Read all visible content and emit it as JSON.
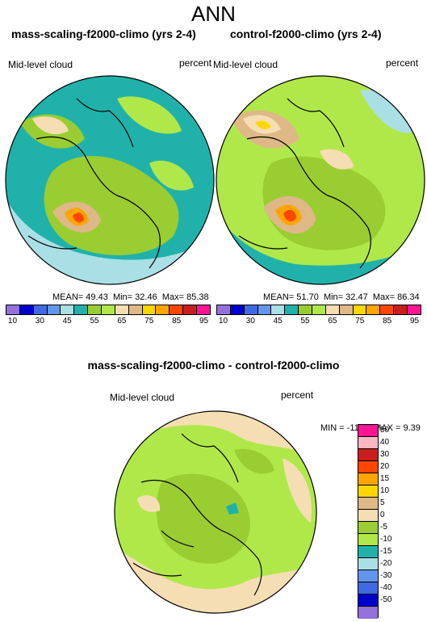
{
  "title": "ANN",
  "panels": [
    {
      "title": "mass-scaling-f2000-climo (yrs 2-4)",
      "variable": "Mid-level cloud",
      "units": "percent",
      "mean_label": "MEAN=",
      "mean": "49.43",
      "min_label": "Min=",
      "min": "32.46",
      "max_label": "Max=",
      "max": "85.38"
    },
    {
      "title": "control-f2000-climo (yrs 2-4)",
      "variable": "Mid-level cloud",
      "units": "percent",
      "mean_label": "MEAN=",
      "mean": "51.70",
      "min_label": "Min=",
      "min": "32.47",
      "max_label": "Max=",
      "max": "86.34"
    }
  ],
  "colorbar_top": {
    "colors": [
      "#9370db",
      "#0000cd",
      "#4169e1",
      "#6495ed",
      "#aadfe6",
      "#20b2aa",
      "#9acd32",
      "#b0e84a",
      "#f5deb3",
      "#deb887",
      "#ffd700",
      "#ffa500",
      "#ff4500",
      "#c81e1e",
      "#ff1493"
    ],
    "labels": [
      "10",
      "30",
      "45",
      "55",
      "65",
      "75",
      "85",
      "95"
    ]
  },
  "difference": {
    "title": "mass-scaling-f2000-climo - control-f2000-climo",
    "variable": "Mid-level cloud",
    "units": "percent",
    "minmax": "MIN = -11.81 MAX =   9.39",
    "colors": [
      "#ff1493",
      "#ffb6c1",
      "#c81e1e",
      "#ff4500",
      "#ffa500",
      "#ffd700",
      "#deb887",
      "#f5deb3",
      "#9acd32",
      "#b0e84a",
      "#20b2aa",
      "#aadfe6",
      "#6495ed",
      "#4169e1",
      "#0000cd",
      "#9370db"
    ],
    "labels": [
      "50",
      "40",
      "30",
      "20",
      "15",
      "10",
      "5",
      "0",
      "-5",
      "-10",
      "-15",
      "-20",
      "-30",
      "-40",
      "-50"
    ]
  }
}
